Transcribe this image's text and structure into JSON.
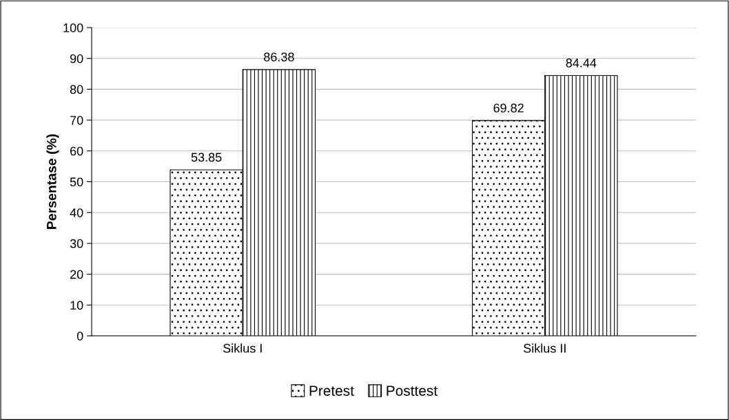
{
  "chart_data": {
    "type": "bar",
    "categories": [
      "Siklus I",
      "Siklus II"
    ],
    "ylabel": "Persentase (%)",
    "series": [
      {
        "name": "Pretest",
        "color": "#000000",
        "values": [
          53.85,
          69.82
        ]
      },
      {
        "name": "Posttest",
        "color": "#000000",
        "values": [
          86.38,
          84.44
        ]
      }
    ],
    "ylim": [
      0,
      100
    ],
    "yticks": [
      0,
      10,
      20,
      30,
      40,
      50,
      60,
      70,
      80,
      90,
      100
    ],
    "grid": "y",
    "legend": "bottom",
    "data_labels": true
  }
}
